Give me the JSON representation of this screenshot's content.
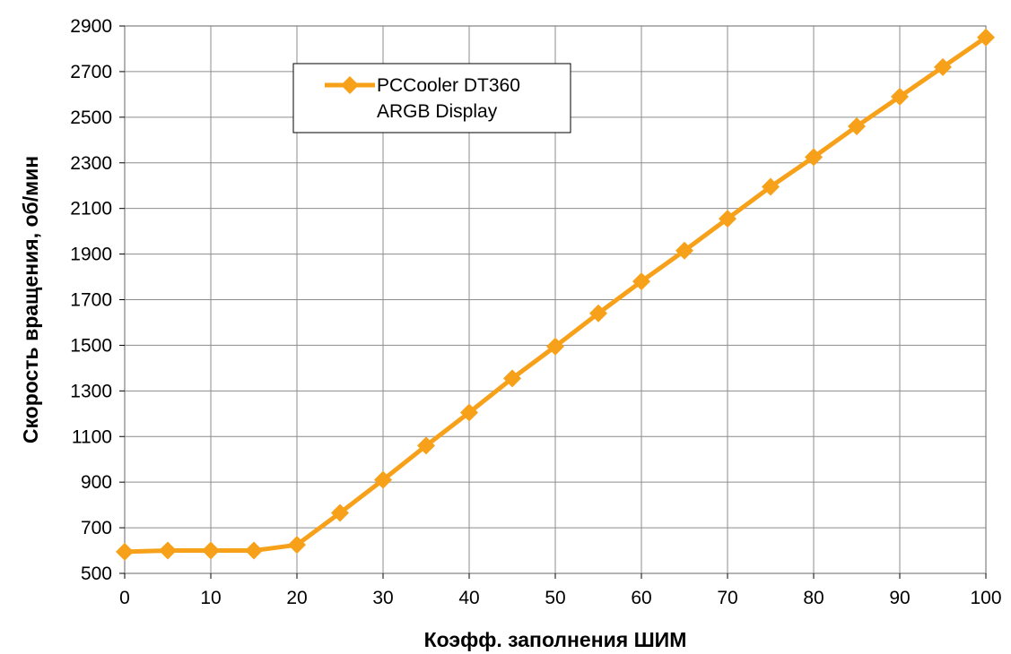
{
  "chart_data": {
    "type": "line",
    "xlabel": "Коэфф. заполнения ШИМ",
    "ylabel": "Скорость вращения, об/мин",
    "xlim": [
      0,
      100
    ],
    "ylim": [
      500,
      2900
    ],
    "x_ticks": [
      0,
      10,
      20,
      30,
      40,
      50,
      60,
      70,
      80,
      90,
      100
    ],
    "y_ticks": [
      500,
      700,
      900,
      1100,
      1300,
      1500,
      1700,
      1900,
      2100,
      2300,
      2500,
      2700,
      2900
    ],
    "grid": true,
    "legend_position": "top-left",
    "series": [
      {
        "name_line1": "PCCooler DT360",
        "name_line2": "ARGB Display",
        "color": "#f7a11a",
        "marker": "diamond",
        "x": [
          0,
          5,
          10,
          15,
          20,
          25,
          30,
          35,
          40,
          45,
          50,
          55,
          60,
          65,
          70,
          75,
          80,
          85,
          90,
          95,
          100
        ],
        "y": [
          595,
          600,
          600,
          600,
          625,
          765,
          910,
          1060,
          1205,
          1355,
          1495,
          1640,
          1780,
          1915,
          2055,
          2195,
          2325,
          2460,
          2590,
          2720,
          2850
        ]
      }
    ]
  }
}
